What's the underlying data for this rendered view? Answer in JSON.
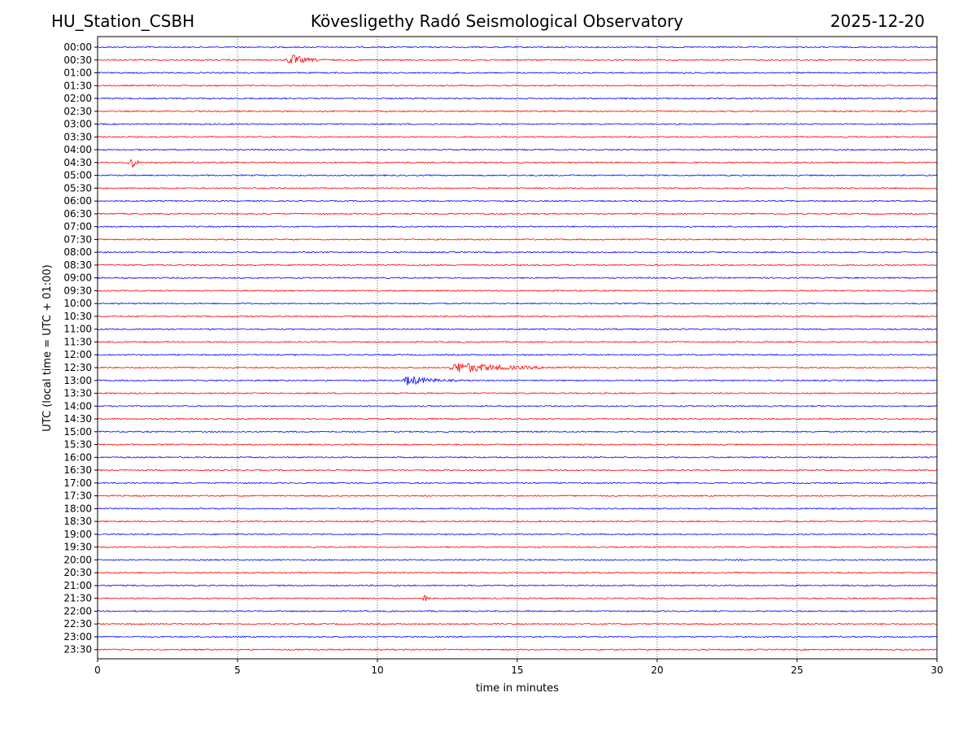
{
  "header": {
    "station": "HU_Station_CSBH",
    "observatory": "Kövesligethy Radó Seismological Observatory",
    "date": "2025-12-20"
  },
  "chart_data": {
    "type": "line",
    "title": "Kövesligethy Radó Seismological Observatory",
    "xlabel": "time in minutes",
    "ylabel": "UTC (local time = UTC + 01:00)",
    "xlim": [
      0,
      30
    ],
    "xticks": [
      0,
      5,
      10,
      15,
      20,
      25,
      30
    ],
    "grid": "vertical dotted at x ticks",
    "trace_colors": [
      "#0000ff",
      "#ff0000"
    ],
    "rows": [
      "00:00",
      "00:30",
      "01:00",
      "01:30",
      "02:00",
      "02:30",
      "03:00",
      "03:30",
      "04:00",
      "04:30",
      "05:00",
      "05:30",
      "06:00",
      "06:30",
      "07:00",
      "07:30",
      "08:00",
      "08:30",
      "09:00",
      "09:30",
      "10:00",
      "10:30",
      "11:00",
      "11:30",
      "12:00",
      "12:30",
      "13:00",
      "13:30",
      "14:00",
      "14:30",
      "15:00",
      "15:30",
      "16:00",
      "16:30",
      "17:00",
      "17:30",
      "18:00",
      "18:30",
      "19:00",
      "19:30",
      "20:00",
      "20:30",
      "21:00",
      "21:30",
      "22:00",
      "22:30",
      "23:00",
      "23:30"
    ],
    "events": [
      {
        "row": "00:30",
        "start_min": 6.7,
        "end_min": 8.5,
        "peak_min": 6.95
      },
      {
        "row": "04:30",
        "start_min": 1.0,
        "end_min": 1.6,
        "peak_min": 1.3
      },
      {
        "row": "12:30",
        "start_min": 12.5,
        "end_min": 18.0,
        "peak_min": 12.9
      },
      {
        "row": "13:00",
        "start_min": 10.9,
        "end_min": 13.2,
        "peak_min": 11.1
      },
      {
        "row": "21:30",
        "start_min": 11.6,
        "end_min": 11.9,
        "peak_min": 11.75
      }
    ]
  }
}
